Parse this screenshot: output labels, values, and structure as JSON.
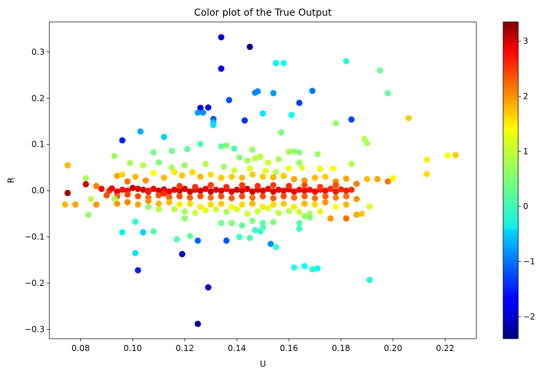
{
  "chart_data": {
    "type": "scatter",
    "title": "Color plot of the True Output",
    "xlabel": "U",
    "ylabel": "R",
    "xlim": [
      0.068,
      0.232
    ],
    "ylim": [
      -0.32,
      0.365
    ],
    "xticks": [
      0.08,
      0.1,
      0.12,
      0.14,
      0.16,
      0.18,
      0.2,
      0.22
    ],
    "xtick_labels": [
      "0.08",
      "0.10",
      "0.12",
      "0.14",
      "0.16",
      "0.18",
      "0.20",
      "0.22"
    ],
    "yticks": [
      -0.3,
      -0.2,
      -0.1,
      0.0,
      0.1,
      0.2,
      0.3
    ],
    "ytick_labels": [
      "−0.3",
      "−0.2",
      "−0.1",
      "0.0",
      "0.1",
      "0.2",
      "0.3"
    ],
    "grid": false,
    "colormap": "jet",
    "colorbar": {
      "vmin": -2.4,
      "vmax": 3.35,
      "ticks": [
        -2,
        -1,
        0,
        1,
        2,
        3
      ],
      "tick_labels": [
        "−2",
        "−1",
        "0",
        "1",
        "2",
        "3"
      ]
    },
    "points": [
      [
        0.134,
        0.332,
        -1.9
      ],
      [
        0.145,
        0.311,
        -2.3
      ],
      [
        0.134,
        0.264,
        -1.8
      ],
      [
        0.155,
        0.276,
        -0.3
      ],
      [
        0.158,
        0.276,
        -0.2
      ],
      [
        0.182,
        0.28,
        0.0
      ],
      [
        0.195,
        0.26,
        0.4
      ],
      [
        0.147,
        0.212,
        -0.9
      ],
      [
        0.148,
        0.215,
        -0.9
      ],
      [
        0.154,
        0.211,
        -0.8
      ],
      [
        0.169,
        0.216,
        -1.0
      ],
      [
        0.198,
        0.211,
        0.3
      ],
      [
        0.137,
        0.196,
        -1.2
      ],
      [
        0.164,
        0.19,
        -1.3
      ],
      [
        0.126,
        0.179,
        -1.9
      ],
      [
        0.129,
        0.18,
        -1.6
      ],
      [
        0.125,
        0.169,
        -0.8
      ],
      [
        0.127,
        0.169,
        -0.9
      ],
      [
        0.15,
        0.167,
        -0.4
      ],
      [
        0.161,
        0.164,
        -0.2
      ],
      [
        0.131,
        0.155,
        -1.2
      ],
      [
        0.131,
        0.148,
        -0.6
      ],
      [
        0.131,
        0.142,
        -0.4
      ],
      [
        0.143,
        0.152,
        -1.4
      ],
      [
        0.184,
        0.154,
        -1.3
      ],
      [
        0.178,
        0.146,
        0.6
      ],
      [
        0.206,
        0.157,
        1.5
      ],
      [
        0.157,
        0.126,
        0.5
      ],
      [
        0.103,
        0.128,
        -0.7
      ],
      [
        0.096,
        0.109,
        -1.5
      ],
      [
        0.112,
        0.116,
        -0.5
      ],
      [
        0.189,
        0.112,
        0.8
      ],
      [
        0.19,
        0.103,
        0.7
      ],
      [
        0.115,
        0.086,
        0.4
      ],
      [
        0.121,
        0.09,
        0.3
      ],
      [
        0.126,
        0.101,
        0.2
      ],
      [
        0.134,
        0.096,
        0.3
      ],
      [
        0.136,
        0.098,
        0.5
      ],
      [
        0.139,
        0.091,
        0.2
      ],
      [
        0.146,
        0.089,
        0.6
      ],
      [
        0.16,
        0.084,
        0.7
      ],
      [
        0.162,
        0.085,
        0.6
      ],
      [
        0.164,
        0.083,
        0.5
      ],
      [
        0.171,
        0.079,
        0.6
      ],
      [
        0.093,
        0.075,
        0.6
      ],
      [
        0.108,
        0.083,
        0.4
      ],
      [
        0.141,
        0.072,
        0.5
      ],
      [
        0.144,
        0.065,
        0.7
      ],
      [
        0.147,
        0.07,
        0.8
      ],
      [
        0.149,
        0.074,
        0.8
      ],
      [
        0.152,
        0.061,
        0.9
      ],
      [
        0.156,
        0.068,
        0.7
      ],
      [
        0.164,
        0.061,
        0.6
      ],
      [
        0.221,
        0.076,
        1.2
      ],
      [
        0.224,
        0.077,
        1.5
      ],
      [
        0.213,
        0.067,
        1.3
      ],
      [
        0.099,
        0.06,
        0.7
      ],
      [
        0.104,
        0.055,
        0.8
      ],
      [
        0.11,
        0.061,
        0.5
      ],
      [
        0.115,
        0.05,
        0.7
      ],
      [
        0.12,
        0.055,
        0.6
      ],
      [
        0.128,
        0.058,
        0.8
      ],
      [
        0.135,
        0.052,
        0.7
      ],
      [
        0.139,
        0.044,
        0.9
      ],
      [
        0.145,
        0.048,
        1.0
      ],
      [
        0.151,
        0.043,
        1.0
      ],
      [
        0.155,
        0.04,
        0.8
      ],
      [
        0.16,
        0.048,
        1.1
      ],
      [
        0.165,
        0.05,
        1.0
      ],
      [
        0.172,
        0.047,
        1.1
      ],
      [
        0.177,
        0.048,
        1.2
      ],
      [
        0.184,
        0.058,
        0.8
      ],
      [
        0.213,
        0.036,
        1.4
      ],
      [
        0.075,
        0.055,
        1.6
      ],
      [
        0.082,
        0.027,
        0.7
      ],
      [
        0.086,
        0.01,
        1.9
      ],
      [
        0.088,
        0.004,
        2.6
      ],
      [
        0.091,
        0.0,
        2.4
      ],
      [
        0.094,
        0.032,
        1.7
      ],
      [
        0.096,
        0.035,
        1.4
      ],
      [
        0.098,
        0.02,
        2.0
      ],
      [
        0.101,
        0.03,
        1.6
      ],
      [
        0.105,
        0.022,
        1.8
      ],
      [
        0.108,
        0.038,
        1.2
      ],
      [
        0.112,
        0.028,
        1.6
      ],
      [
        0.116,
        0.04,
        1.3
      ],
      [
        0.119,
        0.033,
        1.5
      ],
      [
        0.123,
        0.04,
        1.4
      ],
      [
        0.126,
        0.03,
        1.6
      ],
      [
        0.13,
        0.035,
        1.4
      ],
      [
        0.134,
        0.028,
        1.5
      ],
      [
        0.138,
        0.03,
        1.5
      ],
      [
        0.142,
        0.028,
        1.6
      ],
      [
        0.146,
        0.035,
        1.5
      ],
      [
        0.15,
        0.03,
        1.5
      ],
      [
        0.154,
        0.029,
        1.6
      ],
      [
        0.158,
        0.032,
        1.5
      ],
      [
        0.162,
        0.025,
        1.7
      ],
      [
        0.166,
        0.022,
        1.8
      ],
      [
        0.17,
        0.028,
        1.6
      ],
      [
        0.174,
        0.03,
        1.5
      ],
      [
        0.178,
        0.02,
        1.8
      ],
      [
        0.182,
        0.026,
        1.7
      ],
      [
        0.186,
        0.015,
        1.9
      ],
      [
        0.19,
        0.025,
        1.6
      ],
      [
        0.194,
        0.025,
        1.7
      ],
      [
        0.198,
        0.02,
        2.0
      ],
      [
        0.2,
        0.027,
        1.2
      ],
      [
        0.075,
        -0.005,
        3.2
      ],
      [
        0.082,
        0.014,
        2.9
      ],
      [
        0.092,
        0.005,
        2.7
      ],
      [
        0.094,
        -0.002,
        2.8
      ],
      [
        0.096,
        0.002,
        2.6
      ],
      [
        0.098,
        0.0,
        2.7
      ],
      [
        0.1,
        0.006,
        3.0
      ],
      [
        0.102,
        0.004,
        2.8
      ],
      [
        0.104,
        0.002,
        2.9
      ],
      [
        0.106,
        -0.002,
        2.8
      ],
      [
        0.108,
        0.004,
        2.7
      ],
      [
        0.11,
        0.0,
        2.9
      ],
      [
        0.112,
        0.003,
        2.8
      ],
      [
        0.114,
        -0.002,
        2.7
      ],
      [
        0.116,
        0.002,
        2.8
      ],
      [
        0.118,
        0.0,
        2.9
      ],
      [
        0.12,
        0.004,
        2.8
      ],
      [
        0.122,
        -0.002,
        2.9
      ],
      [
        0.124,
        0.002,
        2.8
      ],
      [
        0.126,
        0.0,
        2.9
      ],
      [
        0.128,
        0.004,
        2.7
      ],
      [
        0.13,
        -0.002,
        2.9
      ],
      [
        0.132,
        0.002,
        2.8
      ],
      [
        0.134,
        0.0,
        2.9
      ],
      [
        0.136,
        0.004,
        2.8
      ],
      [
        0.138,
        -0.002,
        2.8
      ],
      [
        0.14,
        0.002,
        2.9
      ],
      [
        0.142,
        0.0,
        2.8
      ],
      [
        0.144,
        0.004,
        2.8
      ],
      [
        0.146,
        -0.002,
        2.9
      ],
      [
        0.148,
        0.002,
        2.8
      ],
      [
        0.15,
        0.0,
        2.8
      ],
      [
        0.152,
        0.004,
        2.7
      ],
      [
        0.154,
        -0.002,
        2.8
      ],
      [
        0.156,
        0.002,
        2.8
      ],
      [
        0.158,
        0.0,
        2.7
      ],
      [
        0.16,
        0.003,
        2.8
      ],
      [
        0.162,
        -0.002,
        2.7
      ],
      [
        0.164,
        0.002,
        2.6
      ],
      [
        0.166,
        0.0,
        2.7
      ],
      [
        0.168,
        0.002,
        2.6
      ],
      [
        0.17,
        -0.002,
        2.6
      ],
      [
        0.172,
        0.002,
        2.5
      ],
      [
        0.174,
        0.0,
        2.6
      ],
      [
        0.176,
        0.004,
        2.4
      ],
      [
        0.178,
        -0.002,
        2.5
      ],
      [
        0.18,
        0.003,
        2.4
      ],
      [
        0.182,
        0.0,
        2.5
      ],
      [
        0.184,
        0.002,
        2.4
      ],
      [
        0.09,
        -0.01,
        2.2
      ],
      [
        0.094,
        -0.012,
        2.1
      ],
      [
        0.098,
        -0.008,
        2.3
      ],
      [
        0.102,
        -0.012,
        2.2
      ],
      [
        0.106,
        -0.015,
        2.0
      ],
      [
        0.11,
        -0.01,
        2.2
      ],
      [
        0.114,
        -0.014,
        2.1
      ],
      [
        0.118,
        -0.012,
        2.2
      ],
      [
        0.122,
        -0.015,
        2.1
      ],
      [
        0.126,
        -0.012,
        2.2
      ],
      [
        0.13,
        -0.015,
        2.0
      ],
      [
        0.134,
        -0.012,
        2.2
      ],
      [
        0.138,
        -0.016,
        2.1
      ],
      [
        0.142,
        -0.012,
        2.2
      ],
      [
        0.146,
        -0.015,
        2.0
      ],
      [
        0.15,
        -0.012,
        2.2
      ],
      [
        0.154,
        -0.016,
        2.1
      ],
      [
        0.158,
        -0.012,
        2.2
      ],
      [
        0.162,
        -0.015,
        2.0
      ],
      [
        0.166,
        -0.012,
        2.1
      ],
      [
        0.17,
        -0.016,
        2.0
      ],
      [
        0.174,
        -0.012,
        2.1
      ],
      [
        0.178,
        -0.015,
        1.9
      ],
      [
        0.182,
        -0.012,
        2.0
      ],
      [
        0.186,
        -0.018,
        1.8
      ],
      [
        0.074,
        -0.03,
        1.6
      ],
      [
        0.078,
        -0.03,
        1.7
      ],
      [
        0.086,
        -0.03,
        1.8
      ],
      [
        0.094,
        -0.028,
        1.8
      ],
      [
        0.098,
        -0.025,
        1.9
      ],
      [
        0.102,
        -0.03,
        1.7
      ],
      [
        0.106,
        -0.022,
        1.8
      ],
      [
        0.11,
        -0.028,
        1.6
      ],
      [
        0.114,
        -0.025,
        1.6
      ],
      [
        0.118,
        -0.03,
        1.3
      ],
      [
        0.122,
        -0.028,
        1.4
      ],
      [
        0.126,
        -0.035,
        1.3
      ],
      [
        0.13,
        -0.03,
        1.4
      ],
      [
        0.134,
        -0.028,
        1.5
      ],
      [
        0.138,
        -0.035,
        1.2
      ],
      [
        0.142,
        -0.03,
        1.4
      ],
      [
        0.146,
        -0.028,
        1.6
      ],
      [
        0.15,
        -0.035,
        1.3
      ],
      [
        0.154,
        -0.03,
        1.4
      ],
      [
        0.158,
        -0.028,
        1.5
      ],
      [
        0.162,
        -0.035,
        1.3
      ],
      [
        0.166,
        -0.028,
        1.6
      ],
      [
        0.17,
        -0.03,
        1.4
      ],
      [
        0.174,
        -0.025,
        1.8
      ],
      [
        0.178,
        -0.035,
        1.2
      ],
      [
        0.182,
        -0.03,
        1.6
      ],
      [
        0.186,
        -0.052,
        1.7
      ],
      [
        0.188,
        -0.05,
        1.5
      ],
      [
        0.191,
        -0.034,
        1.0
      ],
      [
        0.176,
        -0.06,
        1.8
      ],
      [
        0.182,
        -0.06,
        2.0
      ],
      [
        0.084,
        -0.018,
        0.8
      ],
      [
        0.093,
        -0.018,
        0.7
      ],
      [
        0.106,
        -0.035,
        0.6
      ],
      [
        0.11,
        -0.04,
        0.8
      ],
      [
        0.116,
        -0.04,
        0.8
      ],
      [
        0.12,
        -0.045,
        0.7
      ],
      [
        0.124,
        -0.048,
        0.9
      ],
      [
        0.128,
        -0.042,
        1.0
      ],
      [
        0.132,
        -0.04,
        0.9
      ],
      [
        0.136,
        -0.046,
        0.7
      ],
      [
        0.14,
        -0.04,
        1.0
      ],
      [
        0.144,
        -0.05,
        0.9
      ],
      [
        0.148,
        -0.045,
        0.9
      ],
      [
        0.152,
        -0.038,
        1.0
      ],
      [
        0.156,
        -0.048,
        0.8
      ],
      [
        0.16,
        -0.044,
        0.8
      ],
      [
        0.164,
        -0.046,
        0.9
      ],
      [
        0.168,
        -0.05,
        0.7
      ],
      [
        0.172,
        -0.045,
        1.0
      ],
      [
        0.083,
        -0.052,
        0.6
      ],
      [
        0.12,
        -0.06,
        0.6
      ],
      [
        0.134,
        -0.07,
        0.4
      ],
      [
        0.138,
        -0.07,
        0.5
      ],
      [
        0.142,
        -0.075,
        0.3
      ],
      [
        0.146,
        -0.065,
        0.5
      ],
      [
        0.15,
        -0.07,
        0.3
      ],
      [
        0.154,
        -0.068,
        0.5
      ],
      [
        0.164,
        -0.07,
        0.3
      ],
      [
        0.166,
        -0.055,
        0.6
      ],
      [
        0.168,
        -0.058,
        0.5
      ],
      [
        0.101,
        -0.067,
        0.0
      ],
      [
        0.108,
        -0.088,
        0.2
      ],
      [
        0.117,
        -0.105,
        0.2
      ],
      [
        0.122,
        -0.098,
        0.3
      ],
      [
        0.136,
        -0.108,
        -1.2
      ],
      [
        0.141,
        -0.1,
        0.1
      ],
      [
        0.145,
        -0.102,
        0.2
      ],
      [
        0.147,
        -0.085,
        0.1
      ],
      [
        0.149,
        -0.088,
        0.0
      ],
      [
        0.15,
        -0.08,
        0.2
      ],
      [
        0.153,
        -0.115,
        -0.9
      ],
      [
        0.155,
        -0.122,
        0.0
      ],
      [
        0.164,
        -0.082,
        0.1
      ],
      [
        0.096,
        -0.09,
        -0.3
      ],
      [
        0.104,
        -0.09,
        -0.5
      ],
      [
        0.125,
        -0.108,
        -1.1
      ],
      [
        0.101,
        -0.135,
        -0.4
      ],
      [
        0.102,
        -0.172,
        -1.5
      ],
      [
        0.119,
        -0.137,
        -1.9
      ],
      [
        0.129,
        -0.209,
        -1.9
      ],
      [
        0.125,
        -0.288,
        -2.3
      ],
      [
        0.162,
        -0.166,
        -0.1
      ],
      [
        0.166,
        -0.163,
        -0.2
      ],
      [
        0.169,
        -0.17,
        0.0
      ],
      [
        0.171,
        -0.168,
        -0.2
      ],
      [
        0.191,
        -0.193,
        -0.1
      ],
      [
        0.106,
        0.0,
        2.5
      ],
      [
        0.112,
        -0.006,
        2.4
      ],
      [
        0.118,
        0.01,
        2.3
      ],
      [
        0.124,
        0.008,
        2.4
      ],
      [
        0.13,
        0.012,
        2.3
      ],
      [
        0.136,
        0.008,
        2.4
      ],
      [
        0.142,
        0.012,
        2.3
      ],
      [
        0.148,
        0.01,
        2.4
      ],
      [
        0.154,
        0.012,
        2.3
      ],
      [
        0.16,
        0.01,
        2.4
      ],
      [
        0.166,
        0.012,
        2.2
      ],
      [
        0.172,
        0.008,
        2.3
      ],
      [
        0.178,
        0.012,
        2.2
      ]
    ]
  }
}
